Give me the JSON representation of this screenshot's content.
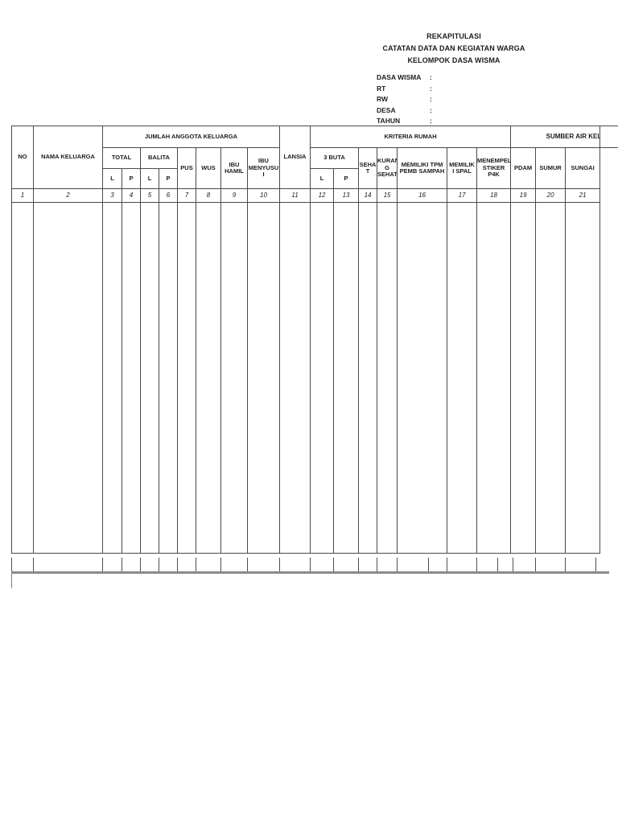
{
  "title_block": {
    "lines": [
      "REKAPITULASI",
      "CATATAN DATA DAN KEGIATAN WARGA",
      "KELOMPOK DASA WISMA"
    ]
  },
  "form": {
    "separator": ":",
    "fields": [
      {
        "label": "DASA WISMA",
        "value": ""
      },
      {
        "label": "RT",
        "value": ""
      },
      {
        "label": "RW",
        "value": ""
      },
      {
        "label": "DESA",
        "value": ""
      },
      {
        "label": "TAHUN",
        "value": ""
      }
    ]
  },
  "table": {
    "no_label": "NO",
    "nama_label": "NAMA KELUARGA",
    "group_jumlah": "JUMLAH ANGGOTA KELUARGA",
    "group_kriteria": "KRITERIA RUMAH",
    "group_sumber": "SUMBER AIR KELUARGA",
    "total_label": "TOTAL",
    "balita_label": "BALITA",
    "l_label": "L",
    "p_label": "P",
    "pus_label": "PUS",
    "wus_label": "WUS",
    "ibu_hamil_label": "IBU\nHAMIL",
    "ibu_menyusui_label": "IBU\nMENYUSU\nI",
    "lansia_label": "LANSIA",
    "tiga_buta_label": "3 BUTA",
    "sehat_label": "SEHA\nT",
    "kurang_sehat_label": "KURAN\nG\nSEHAT",
    "memiliki_tpm_label": "MEMILIKI TPM\nPEMB SAMPAH",
    "memiliki_spal_label": "MEMILIK\nI SPAL",
    "menempel_stiker_label": "MENEMPEL\nSTIKER P4K",
    "pdam_label": "PDAM",
    "sumur_label": "SUMUR",
    "sungai_label": "SUNGAI",
    "numbers": [
      "1",
      "2",
      "3",
      "4",
      "5",
      "6",
      "7",
      "8",
      "9",
      "10",
      "11",
      "12",
      "13",
      "14",
      "15",
      "16",
      "17",
      "18",
      "19",
      "20",
      "21"
    ]
  }
}
